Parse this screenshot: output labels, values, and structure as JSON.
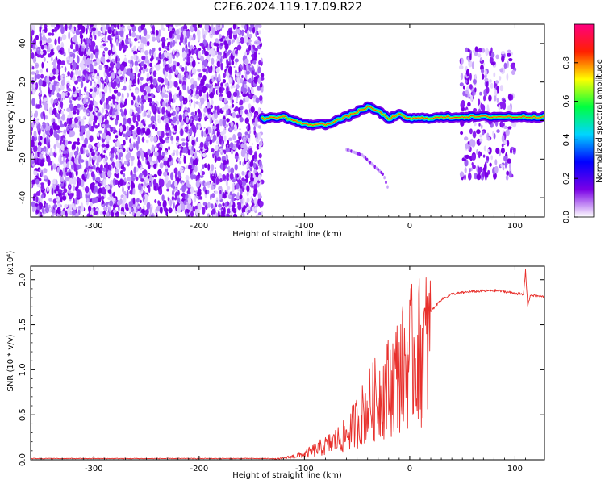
{
  "title": "C2E6.2024.119.17.09.R22",
  "chart_data": [
    {
      "type": "heatmap",
      "xlabel": "Height of straight line (km)",
      "ylabel": "Frequency (Hz)",
      "xlim": [
        -360,
        128
      ],
      "ylim": [
        -50,
        50
      ],
      "x_ticks": [
        -300,
        -200,
        -100,
        0,
        100
      ],
      "y_ticks": [
        -40,
        -20,
        0,
        20,
        40
      ],
      "colorbar": {
        "label": "Normalized spectral amplitude",
        "range": [
          0.0,
          1.0
        ],
        "ticks": [
          "0.0",
          "0.2",
          "0.4",
          "0.6",
          "0.8"
        ],
        "colors": [
          "#ffffff",
          "#7a00e6",
          "#0000ff",
          "#00d5ff",
          "#00ff40",
          "#ffff00",
          "#ff2000",
          "#ff0080"
        ]
      },
      "noise_regions": [
        {
          "x_range": [
            -360,
            -140
          ],
          "y_range": [
            -50,
            50
          ]
        },
        {
          "x_range": [
            48,
            100
          ],
          "y_range": [
            -30,
            37
          ]
        }
      ],
      "signal_track": {
        "x": [
          -140,
          -120,
          -100,
          -80,
          -60,
          -40,
          -30,
          -20,
          -10,
          0,
          50,
          100,
          128
        ],
        "y": [
          1,
          2,
          -2,
          -2,
          2,
          7,
          5,
          1,
          3,
          1,
          2,
          2,
          2
        ]
      },
      "weak_track": {
        "x": [
          -60,
          -45,
          -25,
          -20
        ],
        "y": [
          -15,
          -18,
          -28,
          -36
        ]
      }
    },
    {
      "type": "line",
      "xlabel": "Height of straight line (km)",
      "ylabel": "SNR (10 * v/v)",
      "y_multiplier": "(x10⁴)",
      "xlim": [
        -360,
        128
      ],
      "ylim": [
        0,
        2.15
      ],
      "x_ticks": [
        -300,
        -200,
        -100,
        0,
        100
      ],
      "y_ticks": [
        "0.0",
        "0.5",
        "1.0",
        "1.5",
        "2.0"
      ],
      "series": [
        {
          "color": "#e8302c",
          "x": [
            -360,
            -200,
            -130,
            -120,
            -100,
            -80,
            -60,
            -50,
            -40,
            -30,
            -20,
            -10,
            0,
            10,
            20,
            30,
            40,
            60,
            80,
            90,
            100,
            105,
            108,
            110,
            112,
            115,
            120,
            128
          ],
          "y": [
            0.01,
            0.01,
            0.01,
            0.02,
            0.08,
            0.2,
            0.35,
            0.55,
            0.75,
            0.9,
            1.05,
            1.25,
            1.45,
            1.55,
            1.65,
            1.78,
            1.84,
            1.87,
            1.88,
            1.87,
            1.85,
            1.84,
            1.83,
            2.1,
            1.72,
            1.83,
            1.82,
            1.81
          ]
        }
      ]
    }
  ]
}
